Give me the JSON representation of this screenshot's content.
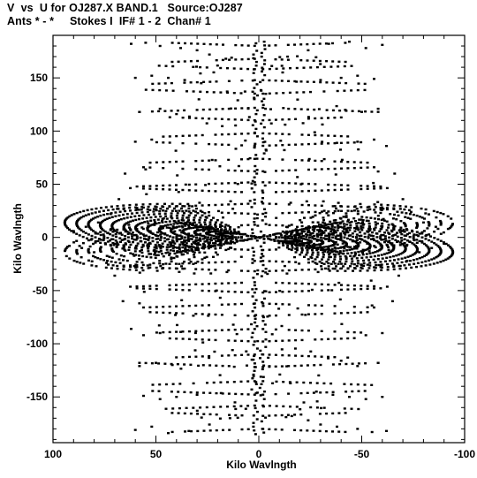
{
  "header": {
    "title_line1": "V  vs  U for OJ287.X BAND.1   Source:OJ287",
    "title_line2": "Ants * - *     Stokes I  IF# 1 - 2  Chan# 1"
  },
  "chart_data": {
    "type": "scatter",
    "title": "V vs U for OJ287.X BAND.1 Source:OJ287",
    "xlabel": "Kilo Wavlngth",
    "ylabel": "Kilo Wavlngth",
    "xlim": [
      100,
      -100
    ],
    "ylim": [
      -193,
      190
    ],
    "x_reversed": true,
    "x_ticks": [
      100,
      50,
      0,
      -50,
      -100
    ],
    "x_tick_labels": [
      "100",
      "50",
      "0",
      "-50",
      "-100"
    ],
    "y_ticks": [
      150,
      100,
      50,
      0,
      -50,
      -100,
      -150
    ],
    "y_tick_labels": [
      "150",
      "100",
      "50",
      "0",
      "-50",
      "-100",
      "-150"
    ],
    "grid": false,
    "legend": "none",
    "marker_color": "#000000",
    "series": [
      {
        "tracks": [
          {
            "u": 96,
            "v": 4,
            "du": 0,
            "dv": 74
          },
          {
            "u": 88,
            "v": 3,
            "du": 0,
            "dv": 62
          },
          {
            "u": 80,
            "v": 3,
            "du": 0,
            "dv": 50
          },
          {
            "u": 72,
            "v": 2,
            "du": 0,
            "dv": 40
          },
          {
            "u": 64,
            "v": 2,
            "du": 2,
            "dv": 30
          },
          {
            "u": 56,
            "v": 1,
            "du": 2,
            "dv": 22
          },
          {
            "u": 48,
            "v": 1,
            "du": 2,
            "dv": 14
          },
          {
            "u": 40,
            "v": 1,
            "du": 2,
            "dv": 8
          },
          {
            "u": 30,
            "v": 0,
            "du": 0,
            "dv": 4
          },
          {
            "u": 60,
            "v": 175,
            "du": 0,
            "dv": 15
          },
          {
            "u": 50,
            "v": 170,
            "du": 0,
            "dv": 12
          },
          {
            "u": 40,
            "v": 165,
            "du": 0,
            "dv": 10
          },
          {
            "u": 30,
            "v": 160,
            "du": 0,
            "dv": 8
          },
          {
            "u": 20,
            "v": 158,
            "du": 0,
            "dv": 5
          },
          {
            "u": 55,
            "v": 130,
            "du": 0,
            "dv": 12
          },
          {
            "u": 45,
            "v": 125,
            "du": 0,
            "dv": 10
          },
          {
            "u": 35,
            "v": 118,
            "du": 0,
            "dv": 8
          },
          {
            "u": 25,
            "v": 112,
            "du": 0,
            "dv": 6
          },
          {
            "u": 50,
            "v": 85,
            "du": 0,
            "dv": 10
          },
          {
            "u": 40,
            "v": 78,
            "du": 0,
            "dv": 8
          },
          {
            "u": 30,
            "v": 70,
            "du": 0,
            "dv": 6
          },
          {
            "u": 20,
            "v": 62,
            "du": 0,
            "dv": 4
          },
          {
            "u": 45,
            "v": 42,
            "du": 0,
            "dv": 8
          },
          {
            "u": 35,
            "v": 36,
            "du": 0,
            "dv": 6
          },
          {
            "u": 25,
            "v": 30,
            "du": 0,
            "dv": 4
          },
          {
            "u": 10,
            "v": 20,
            "du": 0,
            "dv": 3
          },
          {
            "u": 2,
            "v": 170,
            "du": 0,
            "dv": 4
          },
          {
            "u": 3,
            "v": 140,
            "du": 0,
            "dv": 4
          },
          {
            "u": 3,
            "v": 110,
            "du": 0,
            "dv": 4
          },
          {
            "u": 2,
            "v": 80,
            "du": 0,
            "dv": 3
          },
          {
            "u": 2,
            "v": 50,
            "du": 0,
            "dv": 3
          },
          {
            "u": 2,
            "v": 25,
            "du": 0,
            "dv": 2
          }
        ],
        "mirror_points": true
      }
    ]
  }
}
